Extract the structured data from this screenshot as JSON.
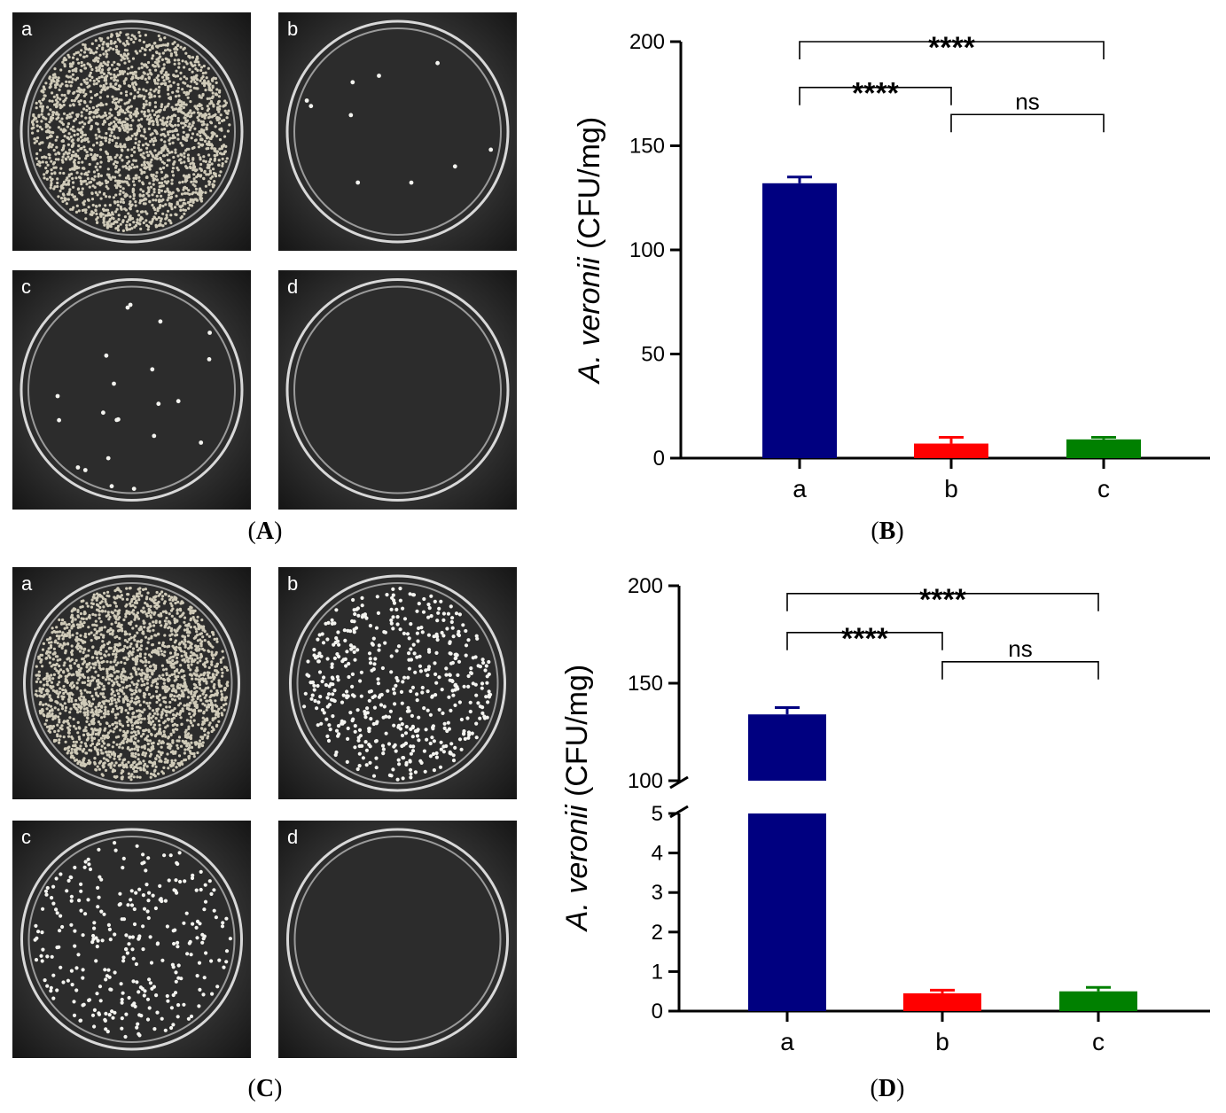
{
  "panels": [
    {
      "id": "A",
      "caption_letter": "A",
      "plates": [
        {
          "label": "a",
          "density": 2200,
          "colony": "light"
        },
        {
          "label": "b",
          "density": 10,
          "colony": "bright"
        },
        {
          "label": "c",
          "density": 22,
          "colony": "bright"
        },
        {
          "label": "d",
          "density": 0,
          "colony": "bright"
        }
      ]
    },
    {
      "id": "C",
      "caption_letter": "C",
      "plates": [
        {
          "label": "a",
          "density": 2400,
          "colony": "light"
        },
        {
          "label": "b",
          "density": 520,
          "colony": "bright"
        },
        {
          "label": "c",
          "density": 300,
          "colony": "bright"
        },
        {
          "label": "d",
          "density": 0,
          "colony": "bright"
        }
      ]
    }
  ],
  "chart_data": [
    {
      "panel": "B",
      "caption_letter": "B",
      "type": "bar",
      "ylabel_italic": "A. veronii",
      "ylabel_rest": " (CFU/mg)",
      "categories": [
        "a",
        "b",
        "c"
      ],
      "values": [
        132,
        7,
        9
      ],
      "errors": [
        3,
        3,
        1
      ],
      "colors": [
        "#000080",
        "#ff0000",
        "#008000"
      ],
      "ylim": [
        0,
        200
      ],
      "yticks": [
        "0",
        "50",
        "100",
        "150",
        "200"
      ],
      "significance": [
        {
          "from": "a",
          "to": "c",
          "label": "****",
          "level": 200
        },
        {
          "from": "a",
          "to": "b",
          "label": "****",
          "level": 178
        },
        {
          "from": "b",
          "to": "c",
          "label": "ns",
          "level": 165
        }
      ]
    },
    {
      "panel": "D",
      "caption_letter": "D",
      "type": "bar",
      "ylabel_italic": "A. veronii",
      "ylabel_rest": " (CFU/mg)",
      "categories": [
        "a",
        "b",
        "c"
      ],
      "values": [
        134,
        0.45,
        0.5
      ],
      "errors": [
        3.5,
        0.08,
        0.1
      ],
      "colors": [
        "#000080",
        "#ff0000",
        "#008000"
      ],
      "broken_axis": {
        "lower": [
          0,
          5
        ],
        "upper": [
          100,
          200
        ]
      },
      "yticks_lower": [
        "0",
        "1",
        "2",
        "3",
        "4",
        "5"
      ],
      "yticks_upper": [
        "100",
        "150",
        "200"
      ],
      "significance": [
        {
          "from": "a",
          "to": "c",
          "label": "****",
          "level": 196
        },
        {
          "from": "a",
          "to": "b",
          "label": "****",
          "level": 176
        },
        {
          "from": "b",
          "to": "c",
          "label": "ns",
          "level": 161
        }
      ]
    }
  ]
}
